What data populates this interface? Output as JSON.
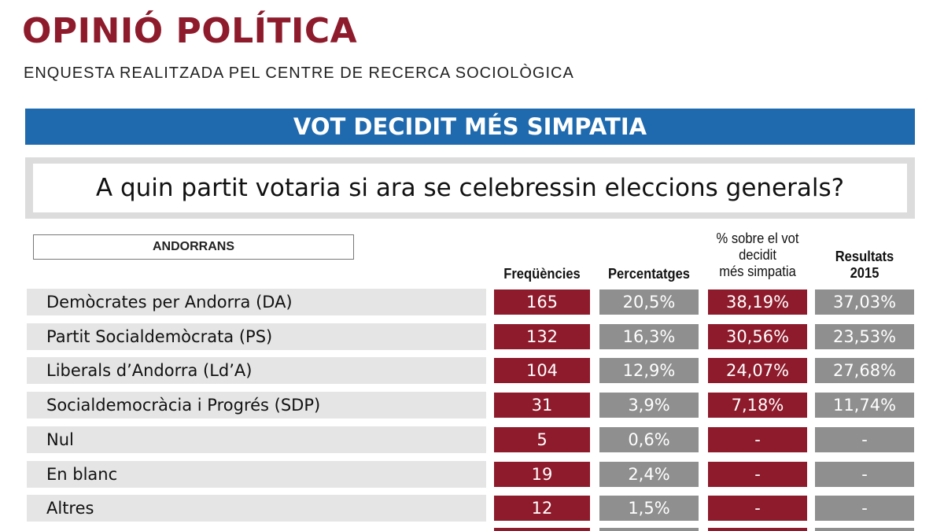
{
  "header": {
    "title": "OPINIÓ POLÍTICA",
    "subtitle": "ENQUESTA REALITZADA PEL CENTRE DE RECERCA SOCIOLÒGICA"
  },
  "banner": "VOT DECIDIT MÉS SIMPATIA",
  "question": "A quin partit votaria si ara se celebressin eleccions generals?",
  "colors": {
    "accent_red": "#8e1b2c",
    "grey": "#8f8f8f",
    "banner_blue": "#1f6aae"
  },
  "chart_data": {
    "type": "table",
    "group_label": "ANDORRANS",
    "columns": [
      {
        "line1": "Freqüències",
        "line2": ""
      },
      {
        "line1": "Percentatges",
        "line2": ""
      },
      {
        "line1": "% sobre el vot",
        "line2": "decidit",
        "line3": "més simpatia"
      },
      {
        "line1": "Resultats",
        "line2": "2015"
      }
    ],
    "rows": [
      {
        "label": "Demòcrates per Andorra (DA)",
        "values": [
          "165",
          "20,5%",
          "38,19%",
          "37,03%"
        ]
      },
      {
        "label": "Partit Socialdemòcrata (PS)",
        "values": [
          "132",
          "16,3%",
          "30,56%",
          "23,53%"
        ]
      },
      {
        "label": "Liberals d’Andorra (Ld’A)",
        "values": [
          "104",
          "12,9%",
          "24,07%",
          "27,68%"
        ]
      },
      {
        "label": "Socialdemocràcia i Progrés (SDP)",
        "values": [
          "31",
          "3,9%",
          "7,18%",
          "11,74%"
        ]
      },
      {
        "label": "Nul",
        "values": [
          "5",
          "0,6%",
          "-",
          "-"
        ]
      },
      {
        "label": "En blanc",
        "values": [
          "19",
          "2,4%",
          "-",
          "-"
        ]
      },
      {
        "label": "Altres",
        "values": [
          "12",
          "1,5%",
          "-",
          "-"
        ]
      }
    ]
  }
}
